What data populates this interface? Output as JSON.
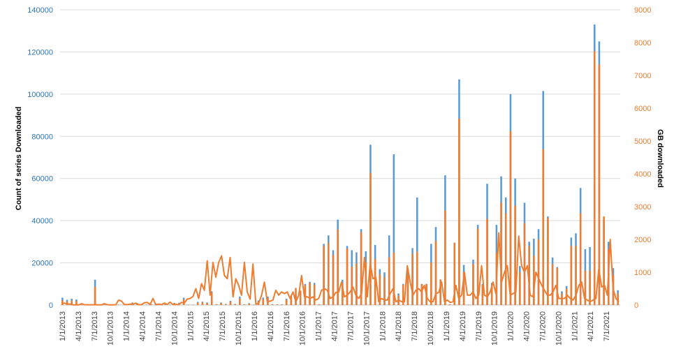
{
  "chart_data": {
    "type": "bar",
    "ylabel": "Count of series Downloaded",
    "y2label": "GB downloaded",
    "ylim": [
      0,
      140000
    ],
    "y2lim": [
      0,
      9000
    ],
    "yticks": [
      "0",
      "20000",
      "40000",
      "60000",
      "80000",
      "100000",
      "120000",
      "140000"
    ],
    "y2ticks": [
      "0",
      "1000",
      "2000",
      "3000",
      "4000",
      "5000",
      "6000",
      "7000",
      "8000",
      "9000"
    ],
    "xtick_labels": [
      "1/1/2013",
      "4/1/2013",
      "7/1/2013",
      "10/1/2013",
      "1/1/2014",
      "4/1/2014",
      "7/1/2014",
      "10/1/2014",
      "1/1/2015",
      "4/1/2015",
      "7/1/2015",
      "10/1/2015",
      "1/1/2016",
      "4/1/2016",
      "7/1/2016",
      "10/1/2016",
      "1/1/2017",
      "4/1/2017",
      "7/1/2017",
      "10/1/2017",
      "1/1/2018",
      "4/1/2018",
      "7/1/2018",
      "10/1/2018",
      "1/1/2019",
      "4/1/2019",
      "7/1/2019",
      "10/1/2019",
      "1/1/2020",
      "4/1/2020",
      "7/1/2020",
      "10/1/2020",
      "1/1/2021",
      "4/1/2021",
      "7/1/2021"
    ],
    "legend": "none",
    "grid": true,
    "colors": {
      "bars": "#5b9bd5",
      "line": "#ed7d31",
      "left_axis": "#2e75b6",
      "right_axis": "#ed7d31",
      "grid": "#d9d9d9"
    },
    "series": [
      {
        "axis": "left",
        "type": "bar",
        "values": [
          3500,
          2500,
          3000,
          2600,
          200,
          100,
          100,
          12000,
          300,
          200,
          200,
          200,
          200,
          100,
          150,
          1200,
          1000,
          200,
          200,
          400,
          600,
          300,
          300,
          200,
          1000,
          1100,
          3500,
          200,
          200,
          1500,
          1600,
          1200,
          6500,
          400,
          1200,
          500,
          2000,
          500,
          4000,
          300,
          900,
          200,
          2200,
          3500,
          4000,
          400,
          300,
          300,
          3000,
          4500,
          5000,
          6000,
          10000,
          11000,
          10500,
          400,
          29000,
          33000,
          26000,
          40500,
          12000,
          28000,
          26000,
          25000,
          36000,
          25500,
          76000,
          28500,
          17000,
          15500,
          33000,
          71500,
          5500,
          10000,
          17000,
          27000,
          51000,
          10000,
          10000,
          29000,
          37000,
          12000,
          61500,
          400,
          29500,
          107000,
          19000,
          200,
          21500,
          38000,
          10000,
          57500,
          10500,
          38000,
          61000,
          51000,
          100000,
          60000,
          18500,
          48500,
          30000,
          31500,
          36000,
          101500,
          42000,
          22500,
          18000,
          6500,
          9000,
          32000,
          34000,
          55500,
          26500,
          27500,
          133000,
          125000,
          40500,
          30000,
          17500,
          7000
        ]
      },
      {
        "axis": "right",
        "type": "bar",
        "values": [
          140,
          110,
          130,
          120,
          10,
          5,
          5,
          560,
          15,
          10,
          10,
          10,
          10,
          5,
          8,
          60,
          50,
          10,
          10,
          20,
          30,
          15,
          15,
          10,
          50,
          55,
          180,
          10,
          10,
          75,
          80,
          60,
          380,
          20,
          60,
          25,
          100,
          25,
          200,
          15,
          45,
          10,
          110,
          180,
          210,
          20,
          15,
          15,
          160,
          230,
          520,
          440,
          600,
          680,
          620,
          20,
          1800,
          1900,
          1530,
          2300,
          650,
          1720,
          1170,
          1270,
          2220,
          1300,
          4030,
          1400,
          940,
          850,
          1450,
          1600,
          290,
          620,
          920,
          1560,
          1620,
          640,
          640,
          1300,
          1950,
          780,
          2880,
          20,
          1900,
          5680,
          1000,
          10,
          1250,
          2330,
          620,
          2630,
          570,
          1600,
          3120,
          2800,
          5300,
          3030,
          1000,
          2500,
          1800,
          1500,
          2000,
          4750,
          2650,
          1250,
          1130,
          350,
          500,
          1800,
          1800,
          2800,
          1050,
          1050,
          7740,
          7330,
          2700,
          1700,
          900,
          350
        ]
      },
      {
        "axis": "right",
        "type": "line",
        "values": [
          60,
          60,
          30,
          30,
          5,
          5,
          5,
          40,
          10,
          8,
          8,
          8,
          8,
          5,
          5,
          40,
          10,
          5,
          5,
          10,
          150,
          120,
          15,
          15,
          30,
          20,
          60,
          10,
          10,
          70,
          80,
          15,
          200,
          10,
          30,
          15,
          60,
          20,
          90,
          15,
          20,
          10,
          80,
          60,
          180,
          200,
          260,
          500,
          200,
          650,
          450,
          1350,
          300,
          1300,
          850,
          1300,
          1500,
          900,
          800,
          1450,
          250,
          800,
          600,
          300,
          1300,
          400,
          180,
          1250,
          30,
          50,
          300,
          700,
          100,
          120,
          150,
          450,
          300,
          400,
          350,
          400,
          200,
          400,
          100,
          300,
          900,
          250,
          250,
          200,
          250,
          150,
          200,
          450,
          500,
          450,
          200,
          250,
          380,
          400,
          700,
          250,
          300,
          400,
          550,
          300,
          200,
          350,
          1450,
          250,
          1250,
          800,
          850,
          100,
          200,
          150,
          150,
          350,
          500,
          100,
          150,
          100,
          100,
          1200,
          700,
          300,
          450,
          500,
          400,
          600,
          200,
          100,
          100,
          350,
          380,
          700,
          100,
          150,
          80,
          100,
          600,
          200,
          300,
          1000,
          300,
          300,
          400,
          200,
          300,
          1200,
          300,
          250,
          400,
          700,
          350,
          2200,
          700,
          1000,
          1200,
          300,
          350,
          400,
          2100,
          1200,
          1000,
          1200,
          300,
          250,
          1000,
          800,
          600,
          450,
          300,
          300,
          400,
          600,
          200,
          200,
          200,
          300,
          200,
          150,
          300,
          600,
          700,
          200,
          150,
          100,
          150,
          200,
          1100,
          550,
          600,
          300,
          2000,
          500,
          200,
          100
        ]
      }
    ]
  }
}
